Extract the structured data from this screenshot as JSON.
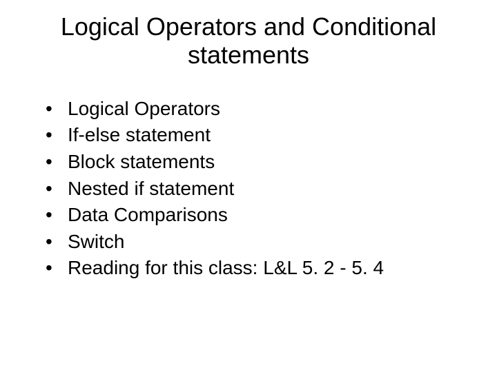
{
  "slide": {
    "title": "Logical Operators and Conditional statements",
    "bullets": [
      "Logical Operators",
      "If-else statement",
      "Block statements",
      "Nested if statement",
      "Data Comparisons",
      "Switch",
      "Reading for this class: L&L 5. 2 - 5. 4"
    ],
    "background_color": "#ffffff",
    "text_color": "#000000",
    "title_fontsize": 36,
    "body_fontsize": 28,
    "font_family": "Arial"
  }
}
